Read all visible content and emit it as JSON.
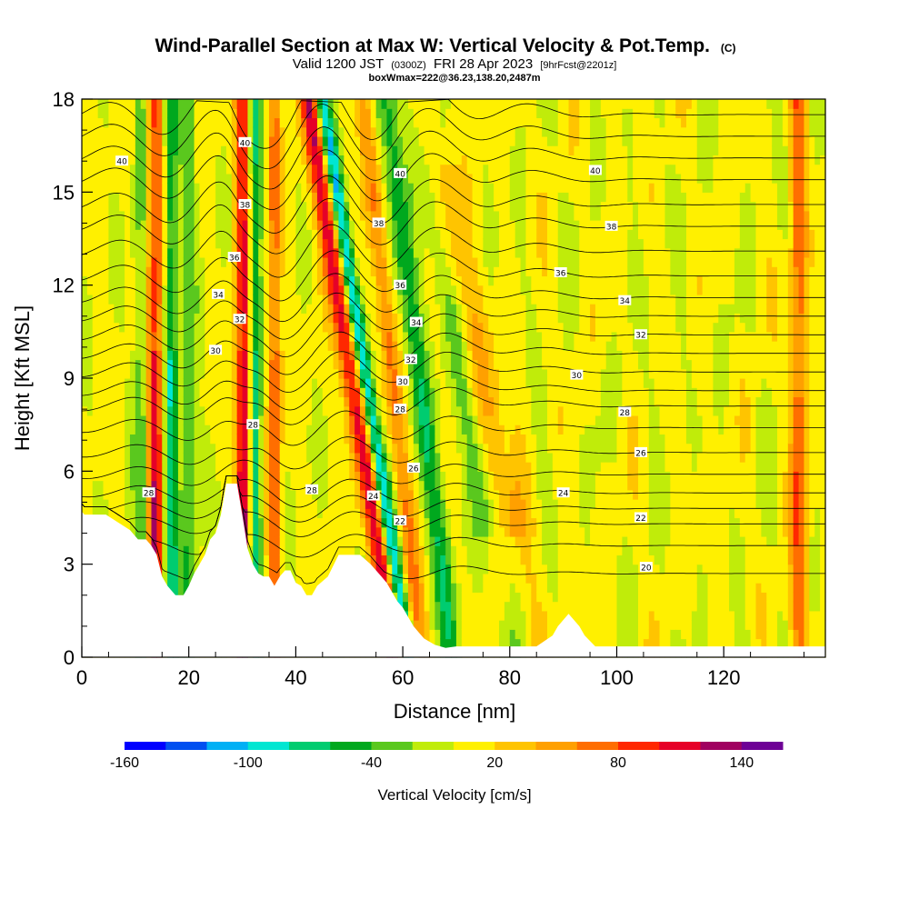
{
  "chart_data": {
    "type": "heatmap",
    "title": "Wind-Parallel Section at Max W: Vertical Velocity & Pot.Temp.",
    "title_mark": "(C)",
    "subtitle": {
      "valid_prefix": "Valid 1200 JST",
      "utc": "(0300Z)",
      "date": "FRI 28 Apr 2023",
      "fcst": "[9hrFcst@2201z]"
    },
    "subtitle2": "boxWmax=222@36.23,138.20,2487m",
    "xlabel": "Distance [nm]",
    "ylabel": "Height [Kft MSL]",
    "xlim": [
      0,
      139
    ],
    "ylim": [
      0,
      18
    ],
    "x_ticks": [
      "0",
      "20",
      "40",
      "60",
      "80",
      "100",
      "120"
    ],
    "y_ticks": [
      "0",
      "3",
      "6",
      "9",
      "12",
      "15",
      "18"
    ],
    "colorbar": {
      "label": "Vertical Velocity [cm/s]",
      "tick_labels": [
        "-160",
        "-100",
        "-40",
        "20",
        "80",
        "140"
      ],
      "range": [
        -160,
        160
      ],
      "colors": [
        "#0000ff",
        "#0050f0",
        "#00b0f5",
        "#00e6d2",
        "#00cc70",
        "#00a81e",
        "#5ac81e",
        "#c0ec0a",
        "#fff000",
        "#ffc400",
        "#ffa000",
        "#ff6e00",
        "#ff2800",
        "#e60028",
        "#a00060",
        "#6e0096"
      ]
    },
    "updraft_bands": [
      {
        "x": 13.5,
        "slope": 0.0,
        "w": 2.0,
        "amp": 120
      },
      {
        "x": 30.5,
        "slope": 0.0,
        "w": 1.6,
        "amp": 155
      },
      {
        "x": 36.0,
        "slope": 0.0,
        "w": 1.2,
        "amp": 80
      },
      {
        "x": 50.5,
        "slope": -0.9,
        "w": 2.0,
        "amp": 110
      },
      {
        "x": 58.0,
        "slope": -0.6,
        "w": 1.6,
        "amp": 60
      },
      {
        "x": 75.0,
        "slope": -1.2,
        "w": 3.5,
        "amp": 35
      },
      {
        "x": 134.0,
        "slope": 0.0,
        "w": 1.5,
        "amp": 70
      }
    ],
    "downdraft_bands": [
      {
        "x": 11.5,
        "slope": 0.0,
        "w": 1.6,
        "amp": -70
      },
      {
        "x": 16.5,
        "slope": 0.0,
        "w": 1.4,
        "amp": -90
      },
      {
        "x": 20.0,
        "slope": 0.0,
        "w": 1.5,
        "amp": -45
      },
      {
        "x": 32.0,
        "slope": 0.0,
        "w": 1.4,
        "amp": -120
      },
      {
        "x": 53.0,
        "slope": -0.9,
        "w": 1.4,
        "amp": -120
      },
      {
        "x": 63.0,
        "slope": -0.7,
        "w": 2.0,
        "amp": -60
      },
      {
        "x": 71.0,
        "slope": -1.0,
        "w": 2.5,
        "amp": -35
      }
    ],
    "terrain": {
      "x": [
        0,
        0.5,
        4.5,
        9,
        10.5,
        12,
        13,
        14,
        15,
        16,
        17.5,
        19,
        20,
        21,
        22,
        23,
        24,
        25,
        26,
        27,
        28,
        29,
        30,
        31,
        32,
        33,
        34,
        35,
        36,
        37,
        38,
        39,
        40,
        41,
        42,
        43,
        44,
        46,
        48,
        50,
        52,
        54,
        55,
        56,
        57,
        58,
        59,
        60,
        61,
        62,
        63,
        64,
        66,
        68,
        70,
        75,
        80,
        82,
        85,
        88,
        89,
        91,
        93,
        94,
        96,
        100,
        105,
        110,
        115,
        120,
        125,
        130,
        135,
        139
      ],
      "y": [
        4.7,
        4.6,
        4.6,
        4.1,
        3.8,
        3.8,
        3.6,
        3.3,
        2.6,
        2.3,
        2.0,
        2.0,
        2.3,
        2.7,
        3.0,
        3.3,
        3.8,
        4.0,
        4.6,
        5.6,
        5.6,
        5.6,
        4.6,
        3.5,
        3.0,
        2.7,
        2.6,
        2.6,
        2.3,
        2.6,
        2.8,
        2.8,
        2.4,
        2.3,
        2.0,
        2.0,
        2.3,
        2.6,
        3.3,
        3.3,
        3.3,
        3.0,
        2.8,
        2.6,
        2.4,
        2.1,
        1.8,
        1.6,
        1.3,
        1.0,
        0.8,
        0.6,
        0.4,
        0.3,
        0.35,
        0.35,
        0.35,
        0.35,
        0.35,
        0.7,
        1.0,
        1.4,
        1.0,
        0.7,
        0.35,
        0.35,
        0.35,
        0.35,
        0.35,
        0.35,
        0.35,
        0.35,
        0.35,
        0.35
      ]
    },
    "theta_contours": {
      "levels": [
        20,
        21,
        22,
        23,
        24,
        25,
        26,
        27,
        28,
        29,
        30,
        31,
        32,
        33,
        34,
        35,
        36,
        37,
        38,
        39,
        40,
        41,
        42
      ],
      "base_height_kft": [
        2.7,
        3.6,
        4.3,
        4.8,
        5.3,
        5.9,
        6.6,
        7.4,
        8.1,
        8.6,
        9.2,
        9.8,
        10.4,
        11.0,
        11.6,
        12.3,
        13.1,
        13.9,
        14.6,
        15.4,
        16.1,
        16.8,
        17.5
      ]
    },
    "contour_labels": [
      {
        "text": "40",
        "x": 7.5,
        "y": 16.0
      },
      {
        "text": "40",
        "x": 30.5,
        "y": 16.6
      },
      {
        "text": "38",
        "x": 30.5,
        "y": 14.6
      },
      {
        "text": "36",
        "x": 28.5,
        "y": 12.9
      },
      {
        "text": "34",
        "x": 25.5,
        "y": 11.7
      },
      {
        "text": "32",
        "x": 29.5,
        "y": 10.9
      },
      {
        "text": "30",
        "x": 25.0,
        "y": 9.9
      },
      {
        "text": "28",
        "x": 32.0,
        "y": 7.5
      },
      {
        "text": "28",
        "x": 12.5,
        "y": 5.3
      },
      {
        "text": "28",
        "x": 43.0,
        "y": 5.4
      },
      {
        "text": "24",
        "x": 54.5,
        "y": 5.2
      },
      {
        "text": "26",
        "x": 62.0,
        "y": 6.1
      },
      {
        "text": "40",
        "x": 59.5,
        "y": 15.6
      },
      {
        "text": "38",
        "x": 55.5,
        "y": 14.0
      },
      {
        "text": "36",
        "x": 59.5,
        "y": 12.0
      },
      {
        "text": "34",
        "x": 62.5,
        "y": 10.8
      },
      {
        "text": "32",
        "x": 61.5,
        "y": 9.6
      },
      {
        "text": "30",
        "x": 60.0,
        "y": 8.9
      },
      {
        "text": "28",
        "x": 59.5,
        "y": 8.0
      },
      {
        "text": "22",
        "x": 59.5,
        "y": 4.4
      },
      {
        "text": "40",
        "x": 96.0,
        "y": 15.7
      },
      {
        "text": "38",
        "x": 99.0,
        "y": 13.9
      },
      {
        "text": "36",
        "x": 89.5,
        "y": 12.4
      },
      {
        "text": "34",
        "x": 101.5,
        "y": 11.5
      },
      {
        "text": "32",
        "x": 104.5,
        "y": 10.4
      },
      {
        "text": "30",
        "x": 92.5,
        "y": 9.1
      },
      {
        "text": "28",
        "x": 101.5,
        "y": 7.9
      },
      {
        "text": "26",
        "x": 104.5,
        "y": 6.6
      },
      {
        "text": "24",
        "x": 90.0,
        "y": 5.3
      },
      {
        "text": "22",
        "x": 104.5,
        "y": 4.5
      },
      {
        "text": "20",
        "x": 105.5,
        "y": 2.9
      }
    ]
  }
}
